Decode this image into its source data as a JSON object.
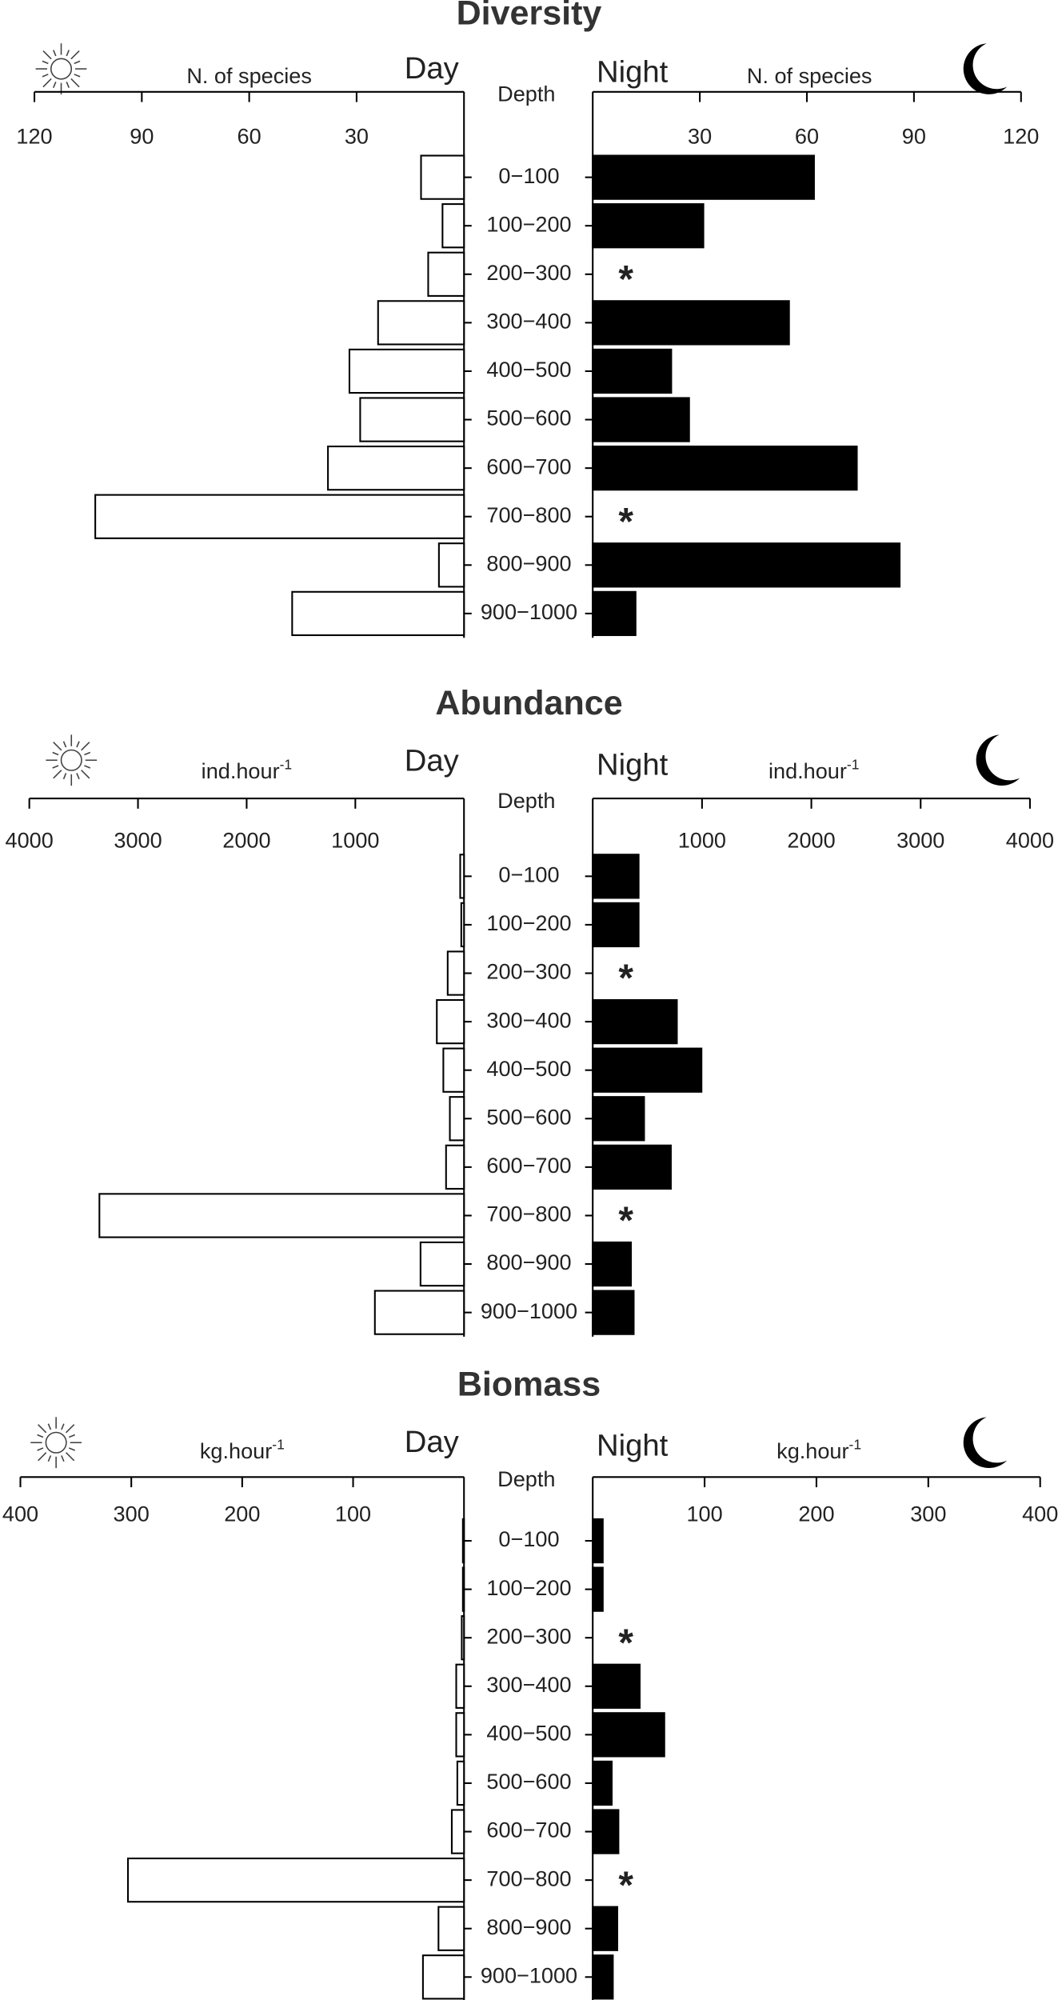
{
  "chart_data": [
    {
      "type": "bar",
      "title": "Diversity",
      "center_label": "Depth",
      "x_label": "N. of species",
      "x_label_sup": null,
      "categories": [
        "0−100",
        "100−200",
        "200−300",
        "300−400",
        "400−500",
        "500−600",
        "600−700",
        "700−800",
        "800−900",
        "900−1000"
      ],
      "series": [
        {
          "name": "Day",
          "color": "#ffffff",
          "values": [
            12,
            6,
            10,
            24,
            32,
            29,
            38,
            103,
            7,
            48
          ]
        },
        {
          "name": "Night",
          "color": "#000000",
          "values": [
            62,
            31,
            null,
            55,
            22,
            27,
            74,
            null,
            86,
            12
          ]
        }
      ],
      "missing_marker": "*",
      "xlim": [
        0,
        120
      ],
      "xticks": [
        30,
        60,
        90,
        120
      ]
    },
    {
      "type": "bar",
      "title": "Abundance",
      "center_label": "Depth",
      "x_label": "ind.hour",
      "x_label_sup": "-1",
      "categories": [
        "0−100",
        "100−200",
        "200−300",
        "300−400",
        "400−500",
        "500−600",
        "600−700",
        "700−800",
        "800−900",
        "900−1000"
      ],
      "series": [
        {
          "name": "Day",
          "color": "#ffffff",
          "values": [
            35,
            25,
            150,
            250,
            190,
            130,
            165,
            3355,
            400,
            820
          ]
        },
        {
          "name": "Night",
          "color": "#000000",
          "values": [
            420,
            420,
            null,
            770,
            995,
            470,
            715,
            null,
            350,
            375
          ]
        }
      ],
      "missing_marker": "*",
      "xlim": [
        0,
        4000
      ],
      "xticks": [
        1000,
        2000,
        3000,
        4000
      ]
    },
    {
      "type": "bar",
      "title": "Biomass",
      "center_label": "Depth",
      "x_label": "kg.hour",
      "x_label_sup": "-1",
      "categories": [
        "0−100",
        "100−200",
        "200−300",
        "300−400",
        "400−500",
        "500−600",
        "600−700",
        "700−800",
        "800−900",
        "900−1000"
      ],
      "series": [
        {
          "name": "Day",
          "color": "#ffffff",
          "values": [
            1,
            1,
            2,
            7,
            7,
            6,
            11,
            303,
            23,
            37
          ]
        },
        {
          "name": "Night",
          "color": "#000000",
          "values": [
            9,
            9,
            null,
            42,
            64,
            17,
            23,
            null,
            22,
            18
          ]
        }
      ],
      "missing_marker": "*",
      "xlim": [
        0,
        400
      ],
      "xticks": [
        100,
        200,
        300,
        400
      ]
    }
  ]
}
